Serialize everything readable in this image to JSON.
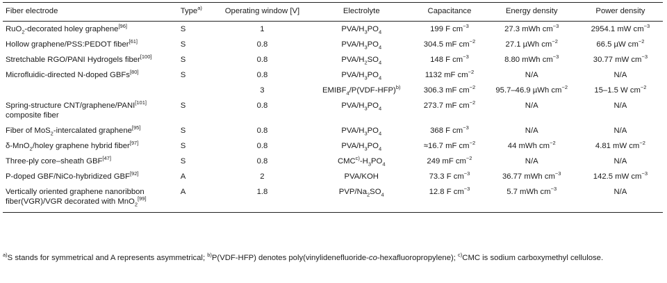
{
  "header": {
    "fiber_electrode": "Fiber electrode",
    "type": "Type",
    "type_note": "a)",
    "operating_window": "Operating window [V]",
    "electrolyte": "Electrolyte",
    "capacitance": "Capacitance",
    "energy_density": "Energy density",
    "power_density": "Power density"
  },
  "rows": [
    {
      "name": "RuO<sub>2</sub>-decorated holey graphene<sup>[96]</sup>",
      "type": "S",
      "window": "1",
      "electrolyte": "PVA/H<sub>3</sub>PO<sub>4</sub>",
      "capacitance": "199 F cm<sup>−3</sup>",
      "energy": "27.3 mWh cm<sup>−3</sup>",
      "power": "2954.1 mW cm<sup>−3</sup>"
    },
    {
      "name": "Hollow graphene/PSS:PEDOT fiber<sup>[61]</sup>",
      "type": "S",
      "window": "0.8",
      "electrolyte": "PVA/H<sub>3</sub>PO<sub>4</sub>",
      "capacitance": "304.5 mF cm<sup>−2</sup>",
      "energy": "27.1 µWh cm<sup>−2</sup>",
      "power": "66.5 µW cm<sup>−2</sup>"
    },
    {
      "name": "Stretchable RGO/PANI Hydrogels fiber<sup>[100]</sup>",
      "type": "S",
      "window": "0.8",
      "electrolyte": "PVA/H<sub>2</sub>SO<sub>4</sub>",
      "capacitance": "148 F cm<sup>−3</sup>",
      "energy": "8.80 mWh cm<sup>−3</sup>",
      "power": "30.77 mW cm<sup>−3</sup>"
    },
    {
      "name": "Microfluidic-directed N-doped GBFs<sup>[80]</sup>",
      "type": "S",
      "window": "0.8",
      "electrolyte": "PVA/H<sub>3</sub>PO<sub>4</sub>",
      "capacitance": "1132 mF cm<sup>−2</sup>",
      "energy": "N/A",
      "power": "N/A"
    },
    {
      "name": "",
      "type": "",
      "window": "3",
      "electrolyte": "EMIBF<sub>4</sub>/P(VDF-HFP)<sup>b)</sup>",
      "capacitance": "306.3 mF cm<sup>−2</sup>",
      "energy": "95.7–46.9 µWh cm<sup>−2</sup>",
      "power": "15–1.5 W cm<sup>−2</sup>"
    },
    {
      "name": "Spring-structure CNT/graphene/PANI<sup>[101]</sup><br>composite fiber",
      "type": "S",
      "window": "0.8",
      "electrolyte": "PVA/H<sub>3</sub>PO<sub>4</sub>",
      "capacitance": "273.7 mF cm<sup>−2</sup>",
      "energy": "N/A",
      "power": "N/A"
    },
    {
      "name": "Fiber of MoS<sub>2</sub>-intercalated graphene<sup>[95]</sup>",
      "type": "S",
      "window": "0.8",
      "electrolyte": "PVA/H<sub>3</sub>PO<sub>4</sub>",
      "capacitance": "368 F cm<sup>−3</sup>",
      "energy": "N/A",
      "power": "N/A"
    },
    {
      "name": "δ-MnO<sub>2</sub>/holey graphene hybrid fiber<sup>[97]</sup>",
      "type": "S",
      "window": "0.8",
      "electrolyte": "PVA/H<sub>3</sub>PO<sub>4</sub>",
      "capacitance": "≈16.7 mF cm<sup>−2</sup>",
      "energy": "44 mWh cm<sup>−2</sup>",
      "power": "4.81 mW cm<sup>−2</sup>"
    },
    {
      "name": "Three-ply core–sheath GBF<sup>[47]</sup>",
      "type": "S",
      "window": "0.8",
      "electrolyte": "CMC<sup>c)</sup>-H<sub>3</sub>PO<sub>4</sub>",
      "capacitance": "249 mF cm<sup>−2</sup>",
      "energy": "N/A",
      "power": "N/A"
    },
    {
      "name": "P-doped GBF/NiCo-hybridized GBF<sup>[92]</sup>",
      "type": "A",
      "window": "2",
      "electrolyte": "PVA/KOH",
      "capacitance": "73.3 F cm<sup>−3</sup>",
      "energy": "36.77 mWh cm<sup>−3</sup>",
      "power": "142.5 mW cm<sup>−3</sup>"
    },
    {
      "name": "Vertically oriented graphene nanoribbon<br>fiber(VGR)/VGR decorated with MnO<sub>2</sub><sup>[99]</sup>",
      "type": "A",
      "window": "1.8",
      "electrolyte": "PVP/Na<sub>2</sub>SO<sub>4</sub>",
      "capacitance": "12.8 F cm<sup>−3</sup>",
      "energy": "5.7 mWh cm<sup>−3</sup>",
      "power": "N/A"
    }
  ],
  "footnote": "<sup>a)</sup>S stands for symmetrical and A represents asymmetrical; <sup>b)</sup>P(VDF-HFP) denotes poly(vinylidenefluoride-<i>co</i>-hexafluoropropylene); <sup>c)</sup>CMC is sodium carboxymethyl cellulose."
}
